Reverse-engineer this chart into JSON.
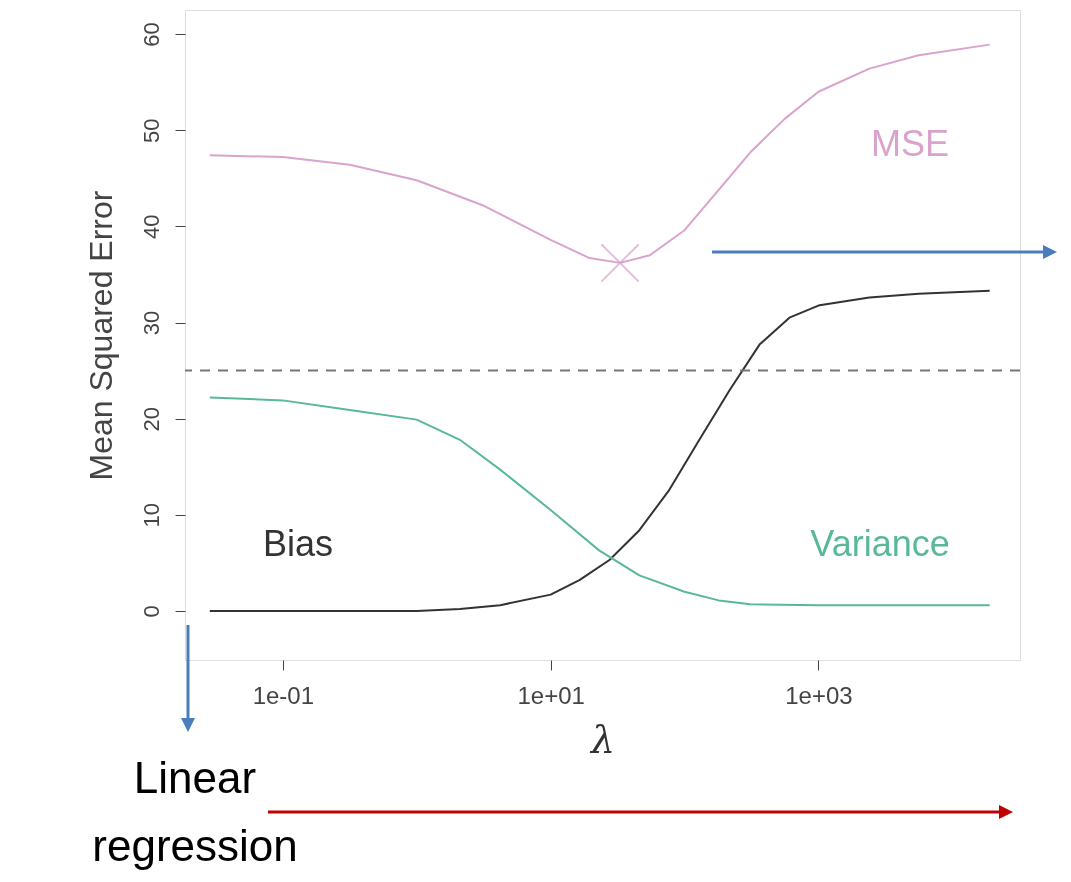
{
  "chart_data": {
    "type": "line",
    "xlabel": "λ",
    "ylabel": "Mean Squared Error",
    "log": "x",
    "grid": false,
    "xlim": [
      0.0186,
      32000
    ],
    "ylim": [
      -5.1,
      62.5
    ],
    "xticks": [
      {
        "value": 0.1,
        "label": "1e-01"
      },
      {
        "value": 10,
        "label": "1e+01"
      },
      {
        "value": 1000,
        "label": "1e+03"
      }
    ],
    "yticks": [
      0,
      10,
      20,
      30,
      40,
      50,
      60
    ],
    "ref_lines": [
      {
        "axis": "y",
        "value": 25,
        "line_style": "dashed",
        "color": "#777777"
      }
    ],
    "annotations": [
      "Linear regression"
    ],
    "series": [
      {
        "name": "MSE",
        "color": "#d9a3cc",
        "x": [
          0.0285,
          0.1,
          0.316,
          1,
          3.1,
          10,
          19.5,
          33,
          55,
          100,
          180,
          310,
          562,
          1000,
          2400,
          5600,
          19000
        ],
        "values": [
          47.4,
          47.2,
          46.4,
          44.8,
          42.2,
          38.6,
          36.7,
          36.2,
          37.0,
          39.6,
          43.8,
          47.7,
          51.2,
          54.0,
          56.4,
          57.8,
          58.9
        ]
      },
      {
        "name": "Bias",
        "color": "#333333",
        "x": [
          0.0285,
          1,
          2.1,
          4.2,
          10,
          16.4,
          27.5,
          46,
          77,
          129,
          218,
          363,
          607,
          1020,
          2400,
          5600,
          19000
        ],
        "values": [
          0,
          0,
          0.2,
          0.6,
          1.7,
          3.2,
          5.3,
          8.4,
          12.6,
          17.8,
          23,
          27.7,
          30.5,
          31.8,
          32.6,
          33.0,
          33.3
        ]
      },
      {
        "name": "Variance",
        "color": "#5ab89a",
        "x": [
          0.0285,
          0.1,
          0.316,
          1,
          2.1,
          4.2,
          10,
          23,
          46,
          100,
          180,
          310,
          1000,
          19000
        ],
        "values": [
          22.2,
          21.9,
          20.9,
          19.9,
          17.8,
          14.7,
          10.5,
          6.3,
          3.7,
          2.0,
          1.1,
          0.7,
          0.6,
          0.6
        ]
      },
      {
        "type": "scatter",
        "marker": "cross",
        "color": "#d9a3cc",
        "x": [
          33
        ],
        "values": [
          36.2
        ]
      }
    ]
  }
}
